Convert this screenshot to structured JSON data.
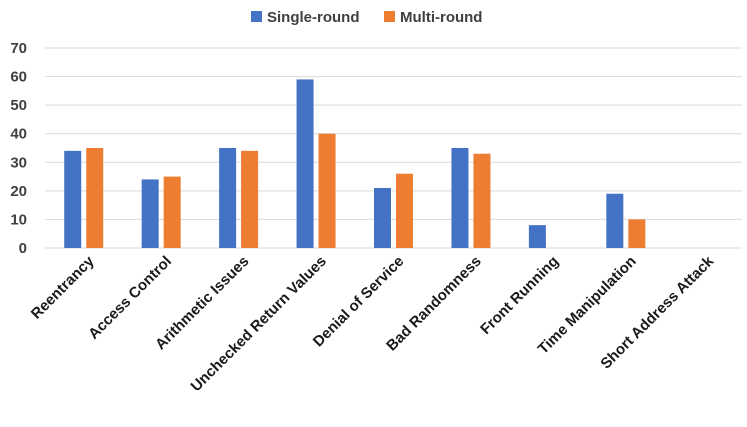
{
  "colors": {
    "single_round": "#4472C4",
    "multi_round": "#ED7D31",
    "grid": "#D9D9D9"
  },
  "legend": {
    "placement": "top-center",
    "items": [
      "Single-round",
      "Multi-round"
    ]
  },
  "chart_data": {
    "type": "bar",
    "title": "",
    "xlabel": "",
    "ylabel": "",
    "ylim": [
      0,
      70
    ],
    "yticks": [
      0,
      10,
      20,
      30,
      40,
      50,
      60,
      70
    ],
    "grid": true,
    "categories": [
      "Reentrancy",
      "Access Control",
      "Arithmetic Issues",
      "Unchecked Return Values",
      "Denial of Service",
      "Bad Randomness",
      "Front Running",
      "Time Manipulation",
      "Short Address Attack"
    ],
    "series": [
      {
        "name": "Single-round",
        "values": [
          34,
          24,
          35,
          59,
          21,
          35,
          8,
          19,
          0
        ]
      },
      {
        "name": "Multi-round",
        "values": [
          35,
          25,
          34,
          40,
          26,
          33,
          0,
          10,
          0
        ]
      }
    ]
  }
}
